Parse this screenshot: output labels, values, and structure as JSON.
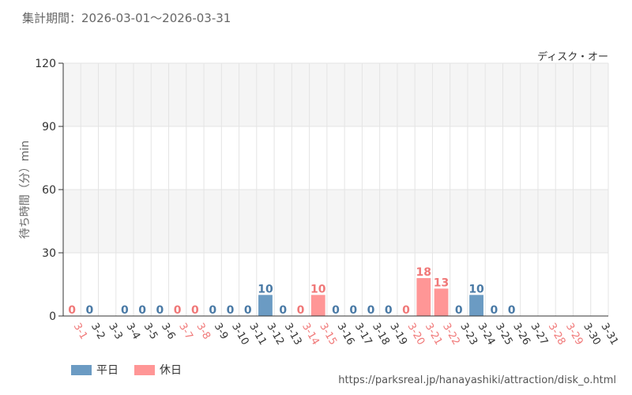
{
  "header": {
    "period_label": "集計期間：2026-03-01～2026-03-31",
    "attraction_name": "ディスク・オー"
  },
  "footer": {
    "source_url": "https://parksreal.jp/hanayashiki/attraction/disk_o.html"
  },
  "colors": {
    "weekday": "#6b9bc3",
    "holiday": "#ff9696",
    "weekday_text": "#4a7aa6",
    "holiday_text": "#f07878",
    "axis_text": "#333333",
    "ylabel_text": "#666666",
    "band": "#f5f5f5",
    "grid": "#e4e4e4"
  },
  "chart_data": {
    "type": "bar",
    "ylabel": "待ち時間（分）min",
    "xlabel": "",
    "ylim": [
      0,
      120
    ],
    "yticks": [
      0,
      30,
      60,
      90,
      120
    ],
    "grid": true,
    "legend": {
      "position": "bottom-left",
      "entries": [
        "平日",
        "休日"
      ]
    },
    "categories": [
      "3-1",
      "3-2",
      "3-3",
      "3-4",
      "3-5",
      "3-6",
      "3-7",
      "3-8",
      "3-9",
      "3-10",
      "3-11",
      "3-12",
      "3-13",
      "3-14",
      "3-15",
      "3-16",
      "3-17",
      "3-18",
      "3-19",
      "3-20",
      "3-21",
      "3-22",
      "3-23",
      "3-24",
      "3-25",
      "3-26",
      "3-27",
      "3-28",
      "3-29",
      "3-30",
      "3-31"
    ],
    "day_type": [
      "holiday",
      "weekday",
      "weekday",
      "weekday",
      "weekday",
      "weekday",
      "holiday",
      "holiday",
      "weekday",
      "weekday",
      "weekday",
      "weekday",
      "weekday",
      "holiday",
      "holiday",
      "weekday",
      "weekday",
      "weekday",
      "weekday",
      "holiday",
      "holiday",
      "holiday",
      "weekday",
      "weekday",
      "weekday",
      "weekday",
      "weekday",
      "holiday",
      "holiday",
      "weekday",
      "weekday"
    ],
    "series": [
      {
        "name": "平日",
        "values": [
          null,
          0,
          null,
          0,
          0,
          0,
          null,
          null,
          0,
          0,
          0,
          10,
          0,
          null,
          null,
          0,
          0,
          0,
          0,
          null,
          null,
          null,
          0,
          10,
          0,
          0,
          null,
          null,
          null,
          null,
          null
        ]
      },
      {
        "name": "休日",
        "values": [
          0,
          null,
          null,
          null,
          null,
          null,
          0,
          0,
          null,
          null,
          null,
          null,
          null,
          0,
          10,
          null,
          null,
          null,
          null,
          0,
          18,
          13,
          null,
          null,
          null,
          null,
          null,
          null,
          null,
          null,
          null
        ]
      }
    ]
  }
}
